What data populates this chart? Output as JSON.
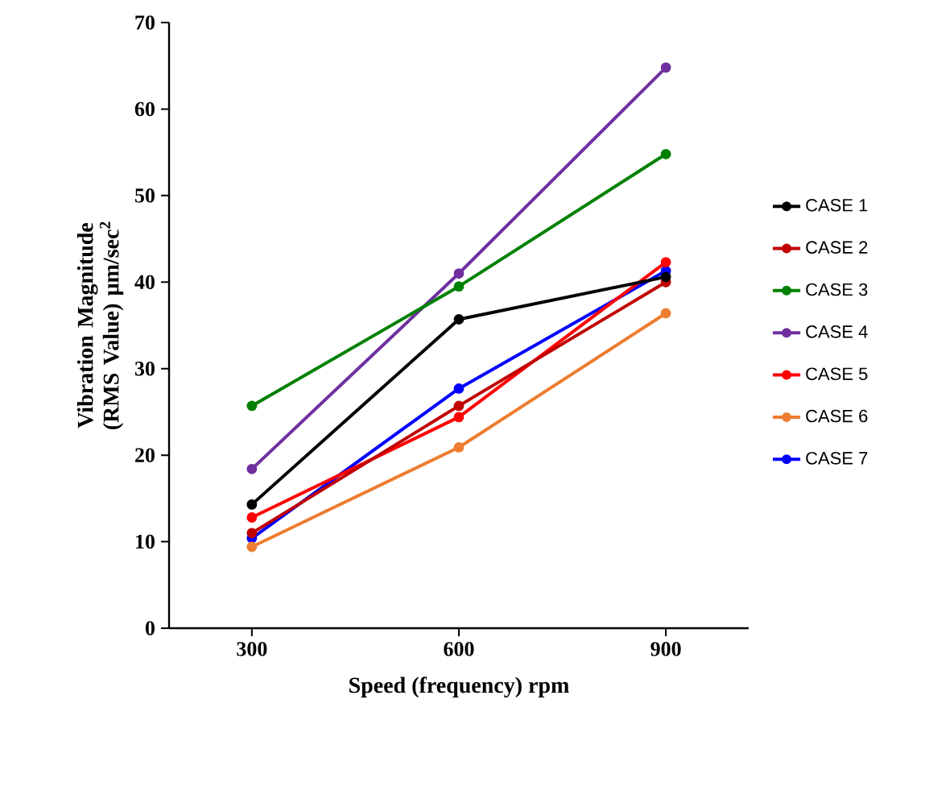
{
  "chart_data": {
    "type": "line",
    "xlabel": "Speed (frequency) rpm",
    "ylabel": "Vibration Magnitude (RMS Value) μm/sec$^{2}$",
    "categories": [
      "300",
      "600",
      "900"
    ],
    "series": [
      {
        "name": "CASE 1",
        "color": "#000000",
        "values": [
          14.3,
          35.7,
          40.6
        ]
      },
      {
        "name": "CASE 2",
        "color": "#c00000",
        "values": [
          11,
          25.7,
          40
        ]
      },
      {
        "name": "CASE 3",
        "color": "#008000",
        "values": [
          25.7,
          39.5,
          54.8
        ]
      },
      {
        "name": "CASE 4",
        "color": "#7030a0",
        "values": [
          18.4,
          41,
          64.8
        ]
      },
      {
        "name": "CASE 5",
        "color": "#ff0000",
        "values": [
          12.8,
          24.4,
          42.3
        ]
      },
      {
        "name": "CASE 6",
        "color": "#ed7d31",
        "values": [
          9.4,
          20.9,
          36.4
        ]
      },
      {
        "name": "CASE 7",
        "color": "#0000ff",
        "values": [
          10.4,
          27.7,
          41.3
        ]
      }
    ],
    "ylim": [
      0,
      70
    ],
    "yticks": [
      0,
      10,
      20,
      30,
      40,
      50,
      60,
      70
    ],
    "grid": false,
    "legend": "right",
    "marker": "circle",
    "line_style": "solid"
  }
}
